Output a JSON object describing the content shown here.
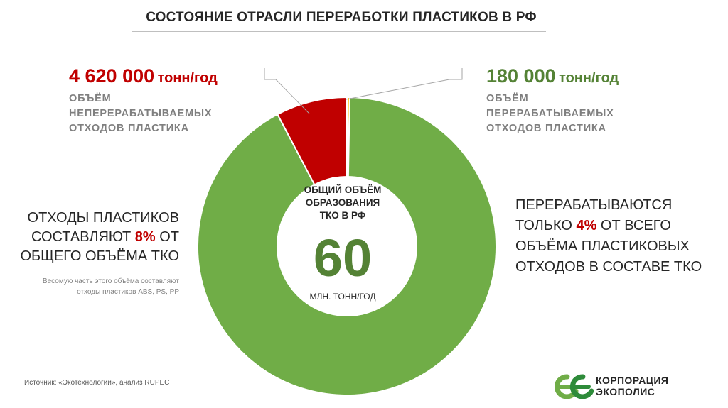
{
  "title": "СОСТОЯНИЕ ОТРАСЛИ ПЕРЕРАБОТКИ ПЛАСТИКОВ В РФ",
  "colors": {
    "other": "#70ad47",
    "unprocessed": "#c00000",
    "processed": "#ffc000",
    "accent_green": "#548235",
    "accent_red": "#c00000"
  },
  "left_callout": {
    "value": "4 620 000",
    "unit": "тонн/год",
    "lines": [
      "ОБЪЁМ",
      "НЕПЕРЕРАБАТЫВАЕМЫХ",
      "ОТХОДОВ ПЛАСТИКА"
    ]
  },
  "right_callout": {
    "value": "180 000",
    "unit": "тонн/год",
    "lines": [
      "ОБЪЁМ",
      "ПЕРЕРАБАТЫВАЕМЫХ",
      "ОТХОДОВ ПЛАСТИКА"
    ]
  },
  "center": {
    "lines": [
      "ОБЩИЙ ОБЪЁМ",
      "ОБРАЗОВАНИЯ",
      "ТКО В РФ"
    ],
    "value": "60",
    "unit": "МЛН. ТОНН/ГОД"
  },
  "left_note": {
    "line1": "ОТХОДЫ ПЛАСТИКОВ",
    "line2_pre": "СОСТАВЛЯЮТ ",
    "line2_pct": "8%",
    "line2_post": " ОТ",
    "line3": "ОБЩЕГО ОБЪЁМА ТКО",
    "small1": "Весомую часть этого объёма составляют",
    "small2": "отходы пластиков ABS, PS, PP"
  },
  "right_note": {
    "line1": "ПЕРЕРАБАТЫВАЮТСЯ",
    "line2_pre": "ТОЛЬКО ",
    "line2_pct": "4%",
    "line2_post": " ОТ ВСЕГО",
    "line3": "ОБЪЁМА ПЛАСТИКОВЫХ",
    "line4": "ОТХОДОВ В СОСТАВЕ ТКО"
  },
  "source": "Источник: «Экотехнологии», анализ RUPEC",
  "logo": {
    "line1": "КОРПОРАЦИЯ",
    "line2": "ЭКОПОЛИС"
  },
  "chart_data": {
    "type": "pie",
    "donut": true,
    "total": 60000000,
    "units": "тонн/год",
    "slices": [
      {
        "name": "processed",
        "value": 180000,
        "color": "#ffc000"
      },
      {
        "name": "other",
        "value": 55200000,
        "color": "#70ad47"
      },
      {
        "name": "unprocessed",
        "value": 4620000,
        "color": "#c00000"
      }
    ],
    "start": "top, clockwise"
  }
}
